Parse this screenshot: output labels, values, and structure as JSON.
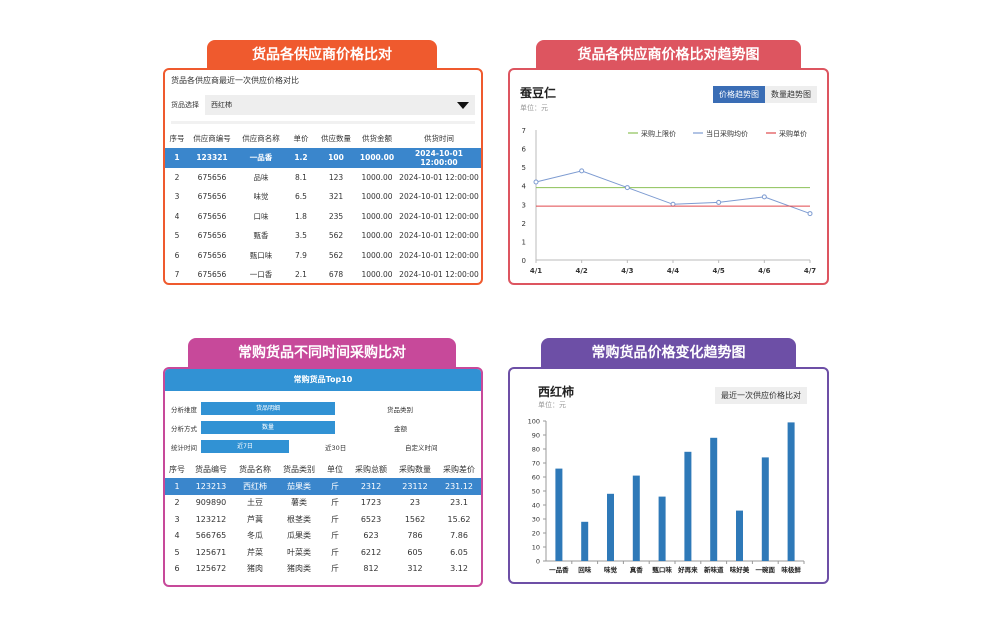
{
  "colors": {
    "p1": "#ef5a2e",
    "p2": "#dd5560",
    "p3": "#c7499a",
    "p4": "#6d4fa6",
    "highlight": "#3a86cc",
    "bar": "#2e79b8"
  },
  "panel1": {
    "header": "货品各供应商价格比对",
    "subtitle": "货品各供应商最近一次供应价格对比",
    "select_label": "货品选择",
    "select_value": "西红柿",
    "columns": [
      "序号",
      "供应商编号",
      "供应商名称",
      "单价",
      "供应数量",
      "供货金额",
      "供货时间"
    ],
    "rows": [
      [
        "1",
        "123321",
        "一品香",
        "1.2",
        "100",
        "1000.00",
        "2024-10-01 12:00:00"
      ],
      [
        "2",
        "675656",
        "品味",
        "8.1",
        "123",
        "1000.00",
        "2024-10-01 12:00:00"
      ],
      [
        "3",
        "675656",
        "味觉",
        "6.5",
        "321",
        "1000.00",
        "2024-10-01 12:00:00"
      ],
      [
        "4",
        "675656",
        "口味",
        "1.8",
        "235",
        "1000.00",
        "2024-10-01 12:00:00"
      ],
      [
        "5",
        "675656",
        "甄香",
        "3.5",
        "562",
        "1000.00",
        "2024-10-01 12:00:00"
      ],
      [
        "6",
        "675656",
        "甄口味",
        "7.9",
        "562",
        "1000.00",
        "2024-10-01 12:00:00"
      ],
      [
        "7",
        "675656",
        "一口香",
        "2.1",
        "678",
        "1000.00",
        "2024-10-01 12:00:00"
      ]
    ]
  },
  "panel2": {
    "header": "货品各供应商价格比对趋势图",
    "title": "蚕豆仁",
    "unit": "单位：元",
    "btn_trend": "价格趋势图",
    "btn_qty": "数量趋势图",
    "chart_data": {
      "type": "line",
      "x": [
        "4/1",
        "4/2",
        "4/3",
        "4/4",
        "4/5",
        "4/6",
        "4/7"
      ],
      "ylim": [
        0,
        7
      ],
      "yticks": [
        "0",
        "1",
        "2",
        "3",
        "4",
        "5",
        "6",
        "7"
      ],
      "series": [
        {
          "name": "采购上限价",
          "values": [
            3.9,
            3.9,
            3.9,
            3.9,
            3.9,
            3.9,
            3.9
          ],
          "color": "#8cc157"
        },
        {
          "name": "当日采购均价",
          "values": [
            4.2,
            4.8,
            3.9,
            3.0,
            3.1,
            3.4,
            2.5
          ],
          "color": "#7d9bd1"
        },
        {
          "name": "采购单价",
          "values": [
            2.9,
            2.9,
            2.9,
            2.9,
            2.9,
            2.9,
            2.9
          ],
          "color": "#e0484c"
        }
      ]
    }
  },
  "panel3": {
    "header": "常购货品不同时间采购比对",
    "bar_title": "常购货品Top10",
    "filters": {
      "dim_label": "分析维度",
      "dim_opt1": "货品明细",
      "dim_opt2": "货品类别",
      "method_label": "分析方式",
      "method_opt1": "数量",
      "method_opt2": "金额",
      "time_label": "统计时间",
      "time_opt1": "近7日",
      "time_opt2": "近30日",
      "time_opt3": "自定义时间"
    },
    "columns": [
      "序号",
      "货品编号",
      "货品名称",
      "货品类别",
      "单位",
      "采购总额",
      "采购数量",
      "采购差价"
    ],
    "rows": [
      [
        "1",
        "123213",
        "西红柿",
        "茄果类",
        "斤",
        "2312",
        "23112",
        "231.12"
      ],
      [
        "2",
        "909890",
        "土豆",
        "薯类",
        "斤",
        "1723",
        "23",
        "23.1"
      ],
      [
        "3",
        "123212",
        "芦蒿",
        "根茎类",
        "斤",
        "6523",
        "1562",
        "15.62"
      ],
      [
        "4",
        "566765",
        "冬瓜",
        "瓜果类",
        "斤",
        "623",
        "786",
        "7.86"
      ],
      [
        "5",
        "125671",
        "芹菜",
        "叶菜类",
        "斤",
        "6212",
        "605",
        "6.05"
      ],
      [
        "6",
        "125672",
        "猪肉",
        "猪肉类",
        "斤",
        "812",
        "312",
        "3.12"
      ]
    ]
  },
  "panel4": {
    "header": "常购货品价格变化趋势图",
    "title": "西红柿",
    "unit": "单位：元",
    "btn": "最近一次供应价格比对",
    "chart_data": {
      "type": "bar",
      "categories": [
        "一品香",
        "回味",
        "味觉",
        "真香",
        "甄口味",
        "好再来",
        "新味道",
        "味好美",
        "一碗面",
        "味极鲜"
      ],
      "values": [
        66,
        28,
        48,
        61,
        46,
        78,
        88,
        36,
        74,
        99
      ],
      "ylim": [
        0,
        100
      ],
      "yticks": [
        "0",
        "10",
        "20",
        "30",
        "40",
        "50",
        "60",
        "70",
        "80",
        "90",
        "100"
      ]
    }
  }
}
